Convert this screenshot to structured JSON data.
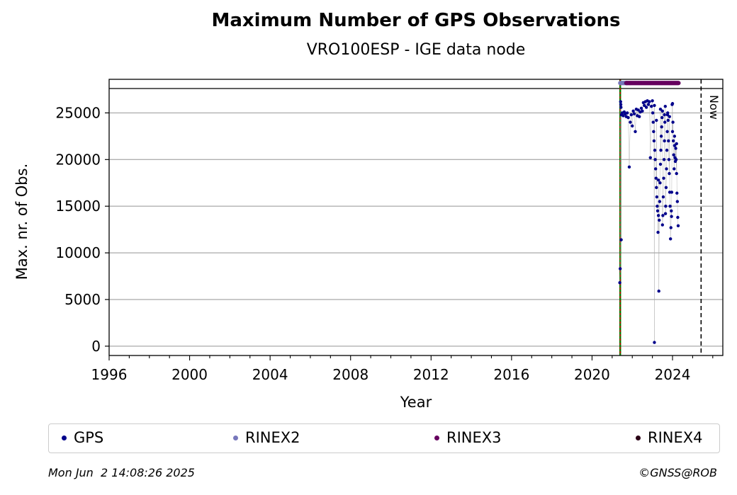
{
  "title": "Maximum Number of GPS Observations",
  "subtitle": "VRO100ESP - IGE data node",
  "footer": {
    "timestamp": "Mon Jun  2 14:08:26 2025",
    "credit": "©GNSS@ROB"
  },
  "now_label": "Now",
  "colors": {
    "gps": "#00008B",
    "rinex2": "#7777BB",
    "rinex3": "#66005F",
    "rinex4": "#2A0015",
    "grid": "#b0b0b0",
    "start_line_green": "#008000",
    "start_line_red": "#CC0000"
  },
  "legend": [
    {
      "label": "GPS",
      "color": "#00008B"
    },
    {
      "label": "RINEX2",
      "color": "#7777BB"
    },
    {
      "label": "RINEX3",
      "color": "#66005F"
    },
    {
      "label": "RINEX4",
      "color": "#2A0015"
    }
  ],
  "chart_data": {
    "type": "scatter",
    "title": "Maximum Number of GPS Observations",
    "subtitle": "VRO100ESP - IGE data node",
    "xlabel": "Year",
    "ylabel": "Max. nr. of Obs.",
    "xlim": [
      1996,
      2026.5
    ],
    "ylim": [
      -1000,
      28600
    ],
    "x_ticks": [
      1996,
      2000,
      2004,
      2008,
      2012,
      2016,
      2020,
      2024
    ],
    "y_ticks": [
      0,
      5000,
      10000,
      15000,
      20000,
      25000
    ],
    "grid": "horizontal",
    "legend_position": "bottom",
    "vertical_lines": [
      {
        "x": 2021.4,
        "style": "green/red dashed",
        "meaning": "start"
      },
      {
        "x": 2025.42,
        "style": "black dashed",
        "label": "Now"
      }
    ],
    "rinex_bands": [
      {
        "name": "RINEX2",
        "x": [
          2021.4,
          2021.75
        ],
        "y": 28200
      },
      {
        "name": "RINEX3",
        "x": [
          2021.7,
          2024.3
        ],
        "y": 28200
      }
    ],
    "series": [
      {
        "name": "GPS",
        "points": [
          [
            2021.38,
            6800
          ],
          [
            2021.4,
            8300
          ],
          [
            2021.45,
            11400
          ],
          [
            2021.42,
            26200
          ],
          [
            2021.43,
            25900
          ],
          [
            2021.44,
            25600
          ],
          [
            2021.46,
            24800
          ],
          [
            2021.5,
            25000
          ],
          [
            2021.55,
            24700
          ],
          [
            2021.6,
            25100
          ],
          [
            2021.65,
            24900
          ],
          [
            2021.7,
            24600
          ],
          [
            2021.75,
            25000
          ],
          [
            2021.8,
            24500
          ],
          [
            2021.85,
            19200
          ],
          [
            2021.9,
            24000
          ],
          [
            2021.95,
            24800
          ],
          [
            2022.0,
            23600
          ],
          [
            2022.05,
            25200
          ],
          [
            2022.1,
            24900
          ],
          [
            2022.15,
            23000
          ],
          [
            2022.2,
            25400
          ],
          [
            2022.25,
            24700
          ],
          [
            2022.3,
            25300
          ],
          [
            2022.35,
            24600
          ],
          [
            2022.4,
            25100
          ],
          [
            2022.45,
            25500
          ],
          [
            2022.5,
            25200
          ],
          [
            2022.55,
            26100
          ],
          [
            2022.6,
            25800
          ],
          [
            2022.65,
            26200
          ],
          [
            2022.7,
            25600
          ],
          [
            2022.75,
            26300
          ],
          [
            2022.8,
            25900
          ],
          [
            2022.85,
            26200
          ],
          [
            2022.9,
            20200
          ],
          [
            2022.95,
            25700
          ],
          [
            2023.0,
            26300
          ],
          [
            2023.02,
            25000
          ],
          [
            2023.04,
            24000
          ],
          [
            2023.06,
            23000
          ],
          [
            2023.08,
            22000
          ],
          [
            2023.1,
            400
          ],
          [
            2023.12,
            21000
          ],
          [
            2023.14,
            20000
          ],
          [
            2023.16,
            19000
          ],
          [
            2023.18,
            18000
          ],
          [
            2023.2,
            17000
          ],
          [
            2023.22,
            16000
          ],
          [
            2023.24,
            15000
          ],
          [
            2023.26,
            14500
          ],
          [
            2023.28,
            12200
          ],
          [
            2023.3,
            14000
          ],
          [
            2023.32,
            5900
          ],
          [
            2023.34,
            13500
          ],
          [
            2023.36,
            15500
          ],
          [
            2023.38,
            17500
          ],
          [
            2023.4,
            19500
          ],
          [
            2023.42,
            21000
          ],
          [
            2023.44,
            22500
          ],
          [
            2023.46,
            23500
          ],
          [
            2023.48,
            24500
          ],
          [
            2023.5,
            25200
          ],
          [
            2023.52,
            14000
          ],
          [
            2023.54,
            16000
          ],
          [
            2023.56,
            18000
          ],
          [
            2023.58,
            20000
          ],
          [
            2023.6,
            22000
          ],
          [
            2023.62,
            24000
          ],
          [
            2023.64,
            25700
          ],
          [
            2023.66,
            15000
          ],
          [
            2023.68,
            17000
          ],
          [
            2023.7,
            19000
          ],
          [
            2023.72,
            21000
          ],
          [
            2023.74,
            23000
          ],
          [
            2023.76,
            25000
          ],
          [
            2023.78,
            24200
          ],
          [
            2023.8,
            22000
          ],
          [
            2023.82,
            20000
          ],
          [
            2023.84,
            18500
          ],
          [
            2023.86,
            16500
          ],
          [
            2023.88,
            15000
          ],
          [
            2023.9,
            11500
          ],
          [
            2023.92,
            12700
          ],
          [
            2023.94,
            14500
          ],
          [
            2023.96,
            16500
          ],
          [
            2023.98,
            25900
          ],
          [
            2024.0,
            26000
          ],
          [
            2024.02,
            24000
          ],
          [
            2024.04,
            22000
          ],
          [
            2024.06,
            20500
          ],
          [
            2024.08,
            19000
          ],
          [
            2024.1,
            21500
          ],
          [
            2024.12,
            20200
          ],
          [
            2024.14,
            19800
          ],
          [
            2024.16,
            21200
          ],
          [
            2024.18,
            20000
          ],
          [
            2024.2,
            18500
          ],
          [
            2024.22,
            16400
          ],
          [
            2024.24,
            15500
          ],
          [
            2024.26,
            13800
          ],
          [
            2024.28,
            12900
          ],
          [
            2023.1,
            25800
          ],
          [
            2023.2,
            24200
          ],
          [
            2023.4,
            25400
          ],
          [
            2023.6,
            24800
          ],
          [
            2023.75,
            24800
          ],
          [
            2023.85,
            24600
          ],
          [
            2024.0,
            23000
          ],
          [
            2024.1,
            22500
          ],
          [
            2024.2,
            21700
          ],
          [
            2023.3,
            17800
          ],
          [
            2023.5,
            13000
          ],
          [
            2023.65,
            14200
          ],
          [
            2023.95,
            13900
          ]
        ]
      }
    ]
  }
}
